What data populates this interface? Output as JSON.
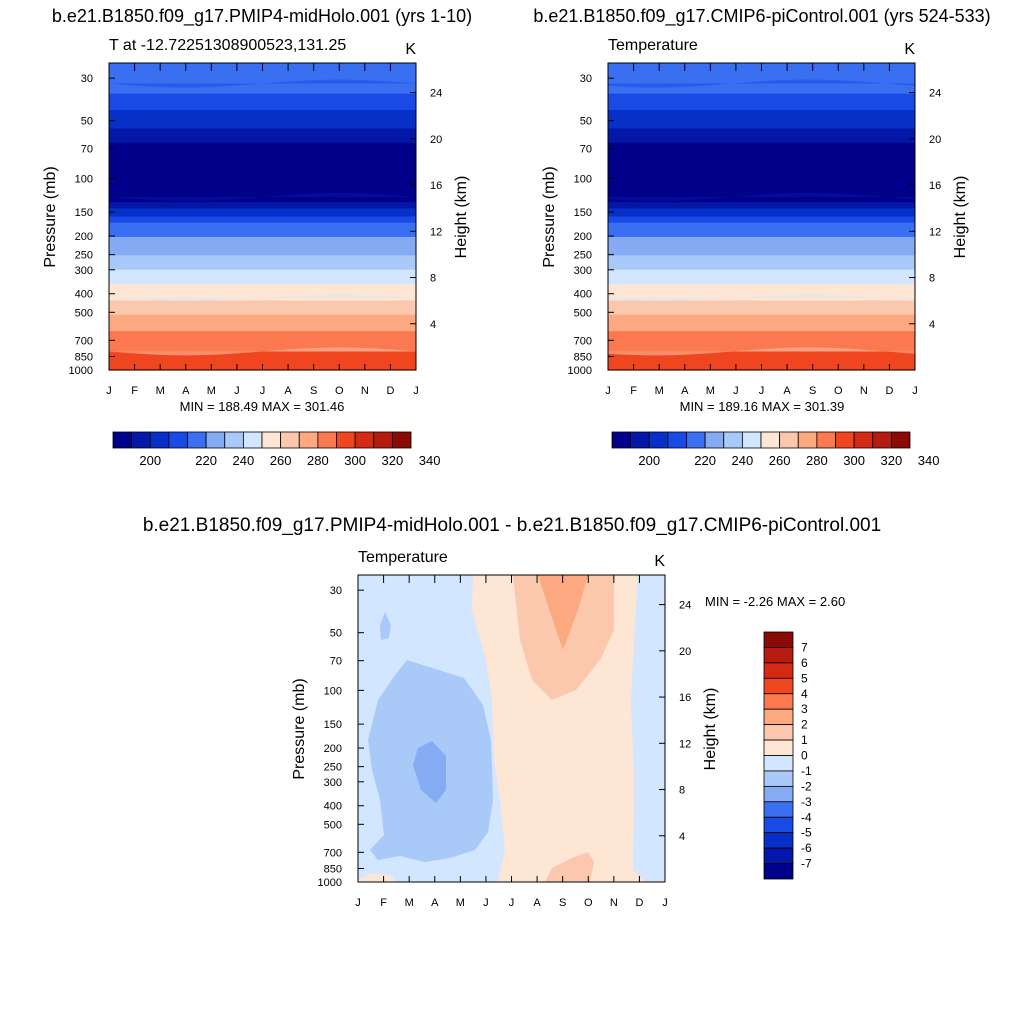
{
  "chart_data": [
    {
      "type": "contour",
      "title": "b.e21.B1850.f09_g17.PMIP4-midHolo.001 (yrs 1-10)",
      "left_label": "T at -12.72251308900523,131.25",
      "units": "K",
      "xlabel": "",
      "ylabel": "Pressure (mb)",
      "ylabel_right": "Height (km)",
      "x_ticks": [
        "J",
        "F",
        "M",
        "A",
        "M",
        "J",
        "J",
        "A",
        "S",
        "O",
        "N",
        "D",
        "J"
      ],
      "y_ticks": [
        30,
        50,
        70,
        100,
        150,
        200,
        250,
        300,
        400,
        500,
        700,
        850,
        1000
      ],
      "y_ticks_right": [
        24,
        20,
        16,
        12,
        8,
        4
      ],
      "ylim": [
        1000,
        25
      ],
      "stats": "MIN = 188.49 MAX = 301.46",
      "colorbar_labels": [
        200,
        220,
        240,
        260,
        280,
        300,
        320,
        340
      ],
      "levels": [
        195,
        200,
        205,
        210,
        220,
        230,
        240,
        250,
        260,
        270,
        280,
        290,
        300,
        310,
        320,
        330,
        340
      ],
      "profile": [
        {
          "p": 25,
          "t": 218
        },
        {
          "p": 30,
          "t": 215
        },
        {
          "p": 40,
          "t": 207
        },
        {
          "p": 55,
          "t": 200
        },
        {
          "p": 70,
          "t": 193
        },
        {
          "p": 100,
          "t": 190
        },
        {
          "p": 130,
          "t": 194
        },
        {
          "p": 150,
          "t": 202
        },
        {
          "p": 175,
          "t": 212
        },
        {
          "p": 200,
          "t": 220
        },
        {
          "p": 250,
          "t": 230
        },
        {
          "p": 300,
          "t": 240
        },
        {
          "p": 400,
          "t": 256
        },
        {
          "p": 500,
          "t": 268
        },
        {
          "p": 600,
          "t": 278
        },
        {
          "p": 700,
          "t": 284
        },
        {
          "p": 850,
          "t": 292
        },
        {
          "p": 925,
          "t": 296
        },
        {
          "p": 1000,
          "t": 300
        }
      ]
    },
    {
      "type": "contour",
      "title": "b.e21.B1850.f09_g17.CMIP6-piControl.001 (yrs 524-533)",
      "left_label": "Temperature",
      "units": "K",
      "xlabel": "",
      "ylabel": "Pressure (mb)",
      "ylabel_right": "Height (km)",
      "x_ticks": [
        "J",
        "F",
        "M",
        "A",
        "M",
        "J",
        "J",
        "A",
        "S",
        "O",
        "N",
        "D",
        "J"
      ],
      "y_ticks": [
        30,
        50,
        70,
        100,
        150,
        200,
        250,
        300,
        400,
        500,
        700,
        850,
        1000
      ],
      "y_ticks_right": [
        24,
        20,
        16,
        12,
        8,
        4
      ],
      "ylim": [
        1000,
        25
      ],
      "stats": "MIN = 189.16 MAX = 301.39",
      "colorbar_labels": [
        200,
        220,
        240,
        260,
        280,
        300,
        320,
        340
      ],
      "levels": [
        195,
        200,
        205,
        210,
        220,
        230,
        240,
        250,
        260,
        270,
        280,
        290,
        300,
        310,
        320,
        330,
        340
      ],
      "profile": [
        {
          "p": 25,
          "t": 218
        },
        {
          "p": 30,
          "t": 215
        },
        {
          "p": 40,
          "t": 207
        },
        {
          "p": 55,
          "t": 200
        },
        {
          "p": 70,
          "t": 193
        },
        {
          "p": 100,
          "t": 190
        },
        {
          "p": 130,
          "t": 194
        },
        {
          "p": 150,
          "t": 202
        },
        {
          "p": 175,
          "t": 212
        },
        {
          "p": 200,
          "t": 220
        },
        {
          "p": 250,
          "t": 230
        },
        {
          "p": 300,
          "t": 240
        },
        {
          "p": 400,
          "t": 256
        },
        {
          "p": 500,
          "t": 268
        },
        {
          "p": 600,
          "t": 278
        },
        {
          "p": 700,
          "t": 284
        },
        {
          "p": 850,
          "t": 292
        },
        {
          "p": 925,
          "t": 296
        },
        {
          "p": 1000,
          "t": 300
        }
      ]
    },
    {
      "type": "contour",
      "title": "b.e21.B1850.f09_g17.PMIP4-midHolo.001 - b.e21.B1850.f09_g17.CMIP6-piControl.001",
      "left_label": "Temperature",
      "units": "K",
      "xlabel": "",
      "ylabel": "Pressure (mb)",
      "ylabel_right": "Height (km)",
      "x_ticks": [
        "J",
        "F",
        "M",
        "A",
        "M",
        "J",
        "J",
        "A",
        "S",
        "O",
        "N",
        "D",
        "J"
      ],
      "y_ticks": [
        30,
        50,
        70,
        100,
        150,
        200,
        250,
        300,
        400,
        500,
        700,
        850,
        1000
      ],
      "y_ticks_right": [
        24,
        20,
        16,
        12,
        8,
        4
      ],
      "ylim": [
        1000,
        25
      ],
      "stats": "MIN =  -2.26 MAX =   2.60",
      "colorbar_labels": [
        7,
        6,
        5,
        4,
        3,
        2,
        1,
        0,
        -1,
        -2,
        -3,
        -4,
        -5,
        -6,
        -7
      ],
      "levels": [
        -7,
        -6,
        -5,
        -4,
        -3,
        -2,
        -1,
        0,
        1,
        2,
        3,
        4,
        5,
        6,
        7
      ],
      "min": -2.26,
      "max": 2.6
    }
  ]
}
